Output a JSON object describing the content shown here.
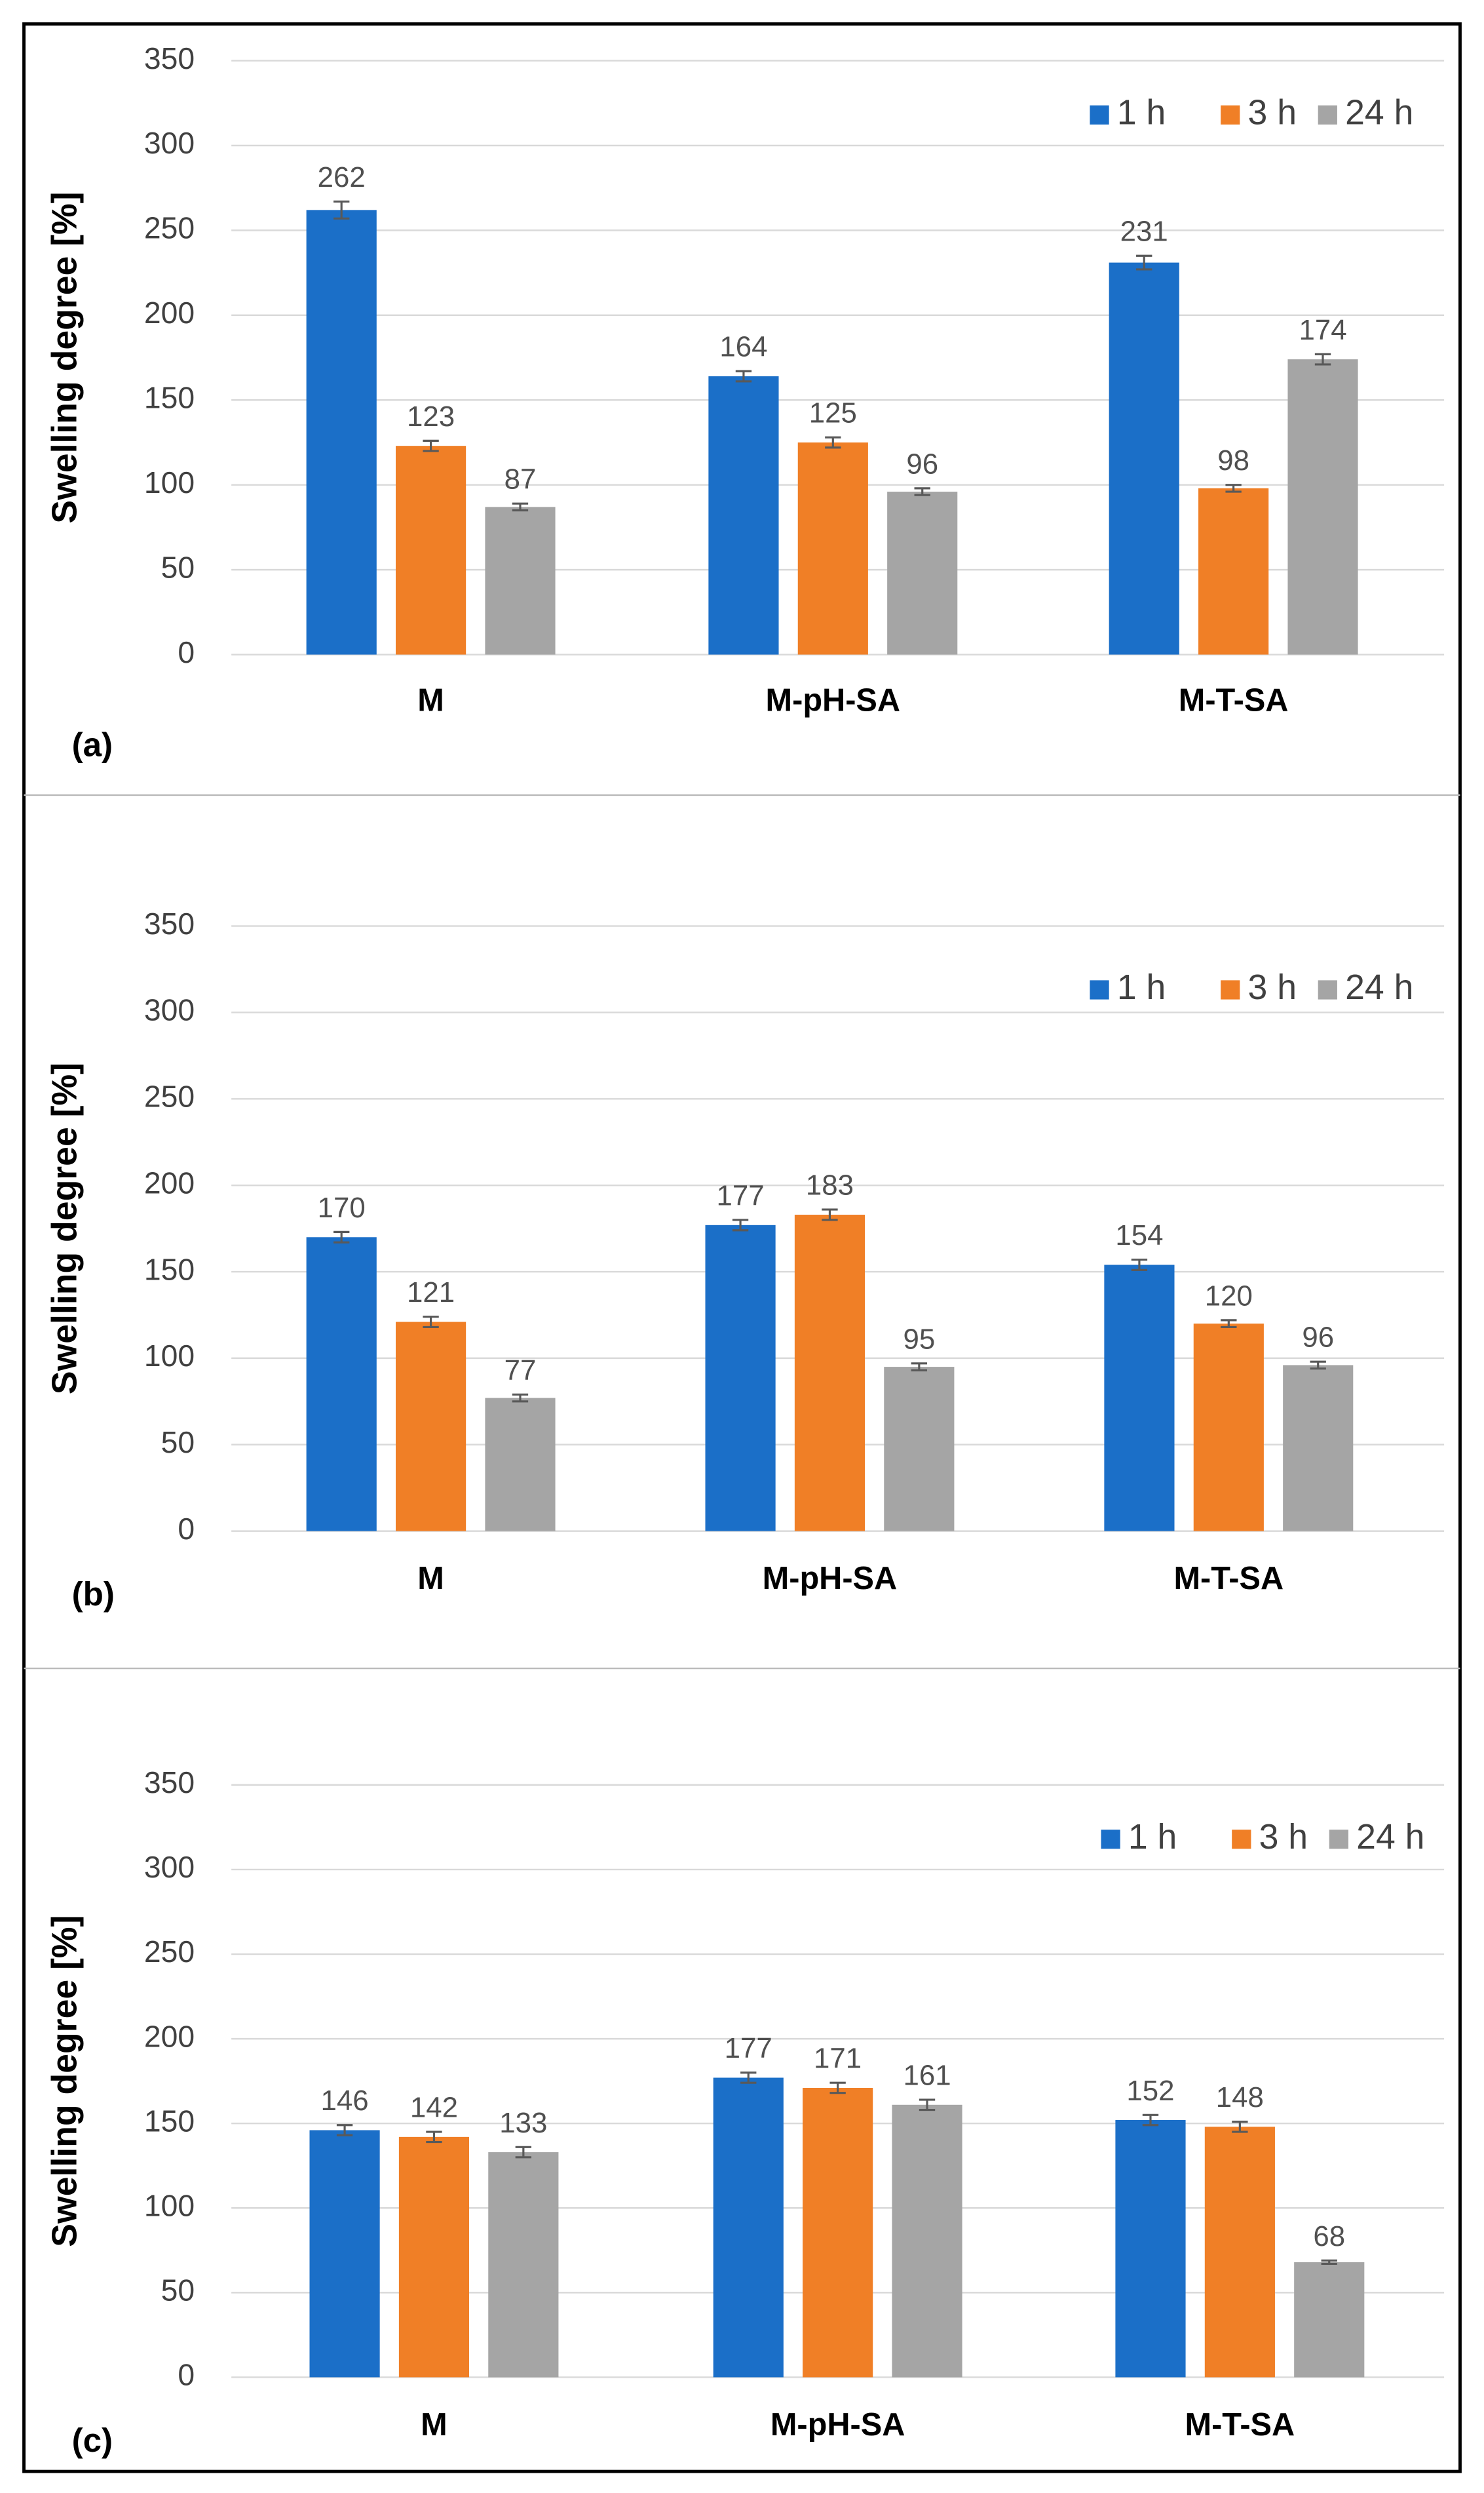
{
  "chart_data": [
    {
      "type": "bar",
      "panel_label": "(a)",
      "y_label": "Swelling degree [%]",
      "categories": [
        "M",
        "M-pH-SA",
        "M-T-SA"
      ],
      "series": [
        {
          "name": "1 h",
          "color": "#1b6fc8",
          "values": [
            262,
            164,
            231
          ],
          "errors": [
            5,
            3,
            4
          ]
        },
        {
          "name": "3 h",
          "color": "#f07f26",
          "values": [
            123,
            125,
            98
          ],
          "errors": [
            3,
            3,
            2
          ]
        },
        {
          "name": "24 h",
          "color": "#a5a5a5",
          "values": [
            87,
            96,
            174
          ],
          "errors": [
            2,
            2,
            3
          ]
        }
      ],
      "ylim": [
        0,
        350
      ],
      "yticks": [
        0,
        50,
        100,
        150,
        200,
        250,
        300,
        350
      ],
      "grid": true,
      "legend": "top-right"
    },
    {
      "type": "bar",
      "panel_label": "(b)",
      "y_label": "Swelling degree [%]",
      "categories": [
        "M",
        "M-pH-SA",
        "M-T-SA"
      ],
      "series": [
        {
          "name": "1 h",
          "color": "#1b6fc8",
          "values": [
            170,
            177,
            154
          ],
          "errors": [
            3,
            3,
            3
          ]
        },
        {
          "name": "3 h",
          "color": "#f07f26",
          "values": [
            121,
            183,
            120
          ],
          "errors": [
            3,
            3,
            2
          ]
        },
        {
          "name": "24 h",
          "color": "#a5a5a5",
          "values": [
            77,
            95,
            96
          ],
          "errors": [
            2,
            2,
            2
          ]
        }
      ],
      "ylim": [
        0,
        350
      ],
      "yticks": [
        0,
        50,
        100,
        150,
        200,
        250,
        300,
        350
      ],
      "grid": true,
      "legend": "top-right"
    },
    {
      "type": "bar",
      "panel_label": "(c)",
      "y_label": "Swelling degree [%]",
      "categories": [
        "M",
        "M-pH-SA",
        "M-T-SA"
      ],
      "series": [
        {
          "name": "1 h",
          "color": "#1b6fc8",
          "values": [
            146,
            177,
            152
          ],
          "errors": [
            3,
            3,
            3
          ]
        },
        {
          "name": "3 h",
          "color": "#f07f26",
          "values": [
            142,
            171,
            148
          ],
          "errors": [
            3,
            3,
            3
          ]
        },
        {
          "name": "24 h",
          "color": "#a5a5a5",
          "values": [
            133,
            161,
            68
          ],
          "errors": [
            3,
            3,
            1
          ]
        }
      ],
      "ylim": [
        0,
        350
      ],
      "yticks": [
        0,
        50,
        100,
        150,
        200,
        250,
        300,
        350
      ],
      "grid": true,
      "legend": "top-right"
    }
  ]
}
